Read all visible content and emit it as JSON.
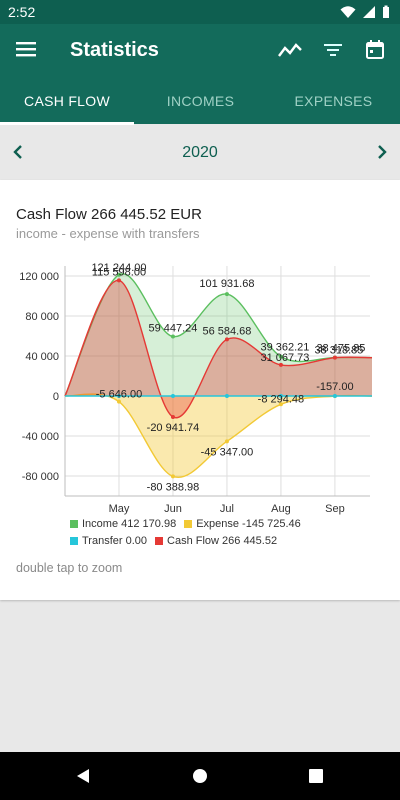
{
  "status": {
    "time": "2:52"
  },
  "appbar": {
    "title": "Statistics"
  },
  "tabs": [
    {
      "label": "CASH FLOW",
      "active": true
    },
    {
      "label": "INCOMES",
      "active": false
    },
    {
      "label": "EXPENSES",
      "active": false
    }
  ],
  "year": "2020",
  "card": {
    "title": "Cash Flow 266 445.52 EUR",
    "subtitle": "income - expense with transfers",
    "hint": "double tap to zoom"
  },
  "legend": [
    {
      "label": "Income 412 170.98",
      "color": "#5bbf5f"
    },
    {
      "label": "Expense -145 725.46",
      "color": "#f2c935"
    },
    {
      "label": "Transfer 0.00",
      "color": "#26c6da"
    },
    {
      "label": "Cash Flow 266 445.52",
      "color": "#e53935"
    }
  ],
  "chart_data": {
    "type": "area",
    "x_ticks": [
      "May",
      "Jun",
      "Jul",
      "Aug",
      "Sep"
    ],
    "y_ticks": [
      "120 000",
      "80 000",
      "40 000",
      "0",
      "-40 000",
      "-80 000"
    ],
    "ylim": [
      -100000,
      130000
    ],
    "series": [
      {
        "name": "Income",
        "color": "#5bbf5f",
        "x": [
          4,
          5,
          6,
          7,
          8,
          9
        ],
        "values": [
          0,
          121244.0,
          59447.24,
          101931.68,
          39362.21,
          38475.85
        ],
        "labels": [
          "",
          "121 244.00",
          "59 447.24",
          "101 931.68",
          "39 362.21",
          "38 475.85"
        ]
      },
      {
        "name": "Expense",
        "color": "#f2c935",
        "x": [
          4,
          5,
          6,
          7,
          8,
          9
        ],
        "values": [
          0,
          -5646.0,
          -80388.98,
          -45347.0,
          -8294.48,
          -157.0
        ],
        "labels": [
          "",
          "-5 646.00",
          "-80 388.98",
          "-45 347.00",
          "-8 294.48",
          "-157.00"
        ]
      },
      {
        "name": "Transfer",
        "color": "#26c6da",
        "x": [
          4,
          5,
          6,
          7,
          8,
          9
        ],
        "values": [
          0,
          0,
          0,
          0,
          0,
          0
        ],
        "labels": [
          "",
          "",
          "",
          "",
          "",
          ""
        ]
      },
      {
        "name": "Cash Flow",
        "color": "#e53935",
        "x": [
          4,
          5,
          6,
          7,
          8,
          9
        ],
        "values": [
          0,
          115598.0,
          -20941.74,
          56584.68,
          31067.73,
          38318.85
        ],
        "labels": [
          "",
          "115 598.00",
          "-20 941.74",
          "56 584.68",
          "31 067.73",
          "38 318.85"
        ]
      }
    ]
  }
}
